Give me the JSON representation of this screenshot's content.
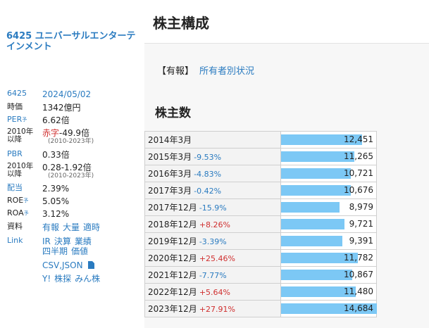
{
  "company": {
    "code": "6425",
    "name": "ユニバーサルエンターテインメント",
    "title": "6425 ユニバーサルエンターテインメント"
  },
  "sidebar": {
    "code": "6425",
    "date": "2024/05/02",
    "market_cap_label": "時価",
    "market_cap": "1342億円",
    "per_label": "PER",
    "per_sup": "予",
    "per": "6.62倍",
    "since2010_label_a": "2010年以降",
    "per_range_red": "赤字",
    "per_range": "-49.9倍",
    "per_range_years": "(2010-2023年)",
    "pbr_label": "PBR",
    "pbr": "0.33倍",
    "since2010_label_b": "2010年以降",
    "pbr_range": "0.28-1.92倍",
    "pbr_range_years": "(2010-2023年)",
    "dividend_label": "配当",
    "dividend": "2.39%",
    "roe_label": "ROE",
    "roe_sup": "予",
    "roe": "5.05%",
    "roa_label": "ROA",
    "roa_sup": "予",
    "roa": "3.12%",
    "docs_label": "資料",
    "docs_links": [
      "有報",
      "大量",
      "適時"
    ],
    "link_label": "Link",
    "link_row1": [
      "IR",
      "決算",
      "業績"
    ],
    "link_row2": [
      "四半期",
      "価値"
    ],
    "link_row3": "CSV,JSON",
    "link_row4": [
      "Y!",
      "株探",
      "みん株"
    ]
  },
  "main": {
    "title": "株主構成",
    "subnav_tag": "【有報】",
    "subnav_link": "所有者別状況",
    "section_title": "株主数"
  },
  "colors": {
    "accent": "#2a7bc0",
    "bar": "#7cc8f5",
    "negative": "#d03030"
  },
  "shareholders": [
    {
      "period": "2014年3月",
      "change": "",
      "dir": "",
      "count": "12,451",
      "value": 12451
    },
    {
      "period": "2015年3月",
      "change": "-9.53%",
      "dir": "neg",
      "count": "11,265",
      "value": 11265
    },
    {
      "period": "2016年3月",
      "change": "-4.83%",
      "dir": "neg",
      "count": "10,721",
      "value": 10721
    },
    {
      "period": "2017年3月",
      "change": "-0.42%",
      "dir": "neg",
      "count": "10,676",
      "value": 10676
    },
    {
      "period": "2017年12月",
      "change": "-15.9%",
      "dir": "neg",
      "count": "8,979",
      "value": 8979
    },
    {
      "period": "2018年12月",
      "change": "+8.26%",
      "dir": "pos",
      "count": "9,721",
      "value": 9721
    },
    {
      "period": "2019年12月",
      "change": "-3.39%",
      "dir": "neg",
      "count": "9,391",
      "value": 9391
    },
    {
      "period": "2020年12月",
      "change": "+25.46%",
      "dir": "pos",
      "count": "11,782",
      "value": 11782
    },
    {
      "period": "2021年12月",
      "change": "-7.77%",
      "dir": "neg",
      "count": "10,867",
      "value": 10867
    },
    {
      "period": "2022年12月",
      "change": "+5.64%",
      "dir": "pos",
      "count": "11,480",
      "value": 11480
    },
    {
      "period": "2023年12月",
      "change": "+27.91%",
      "dir": "pos",
      "count": "14,684",
      "value": 14684
    }
  ]
}
